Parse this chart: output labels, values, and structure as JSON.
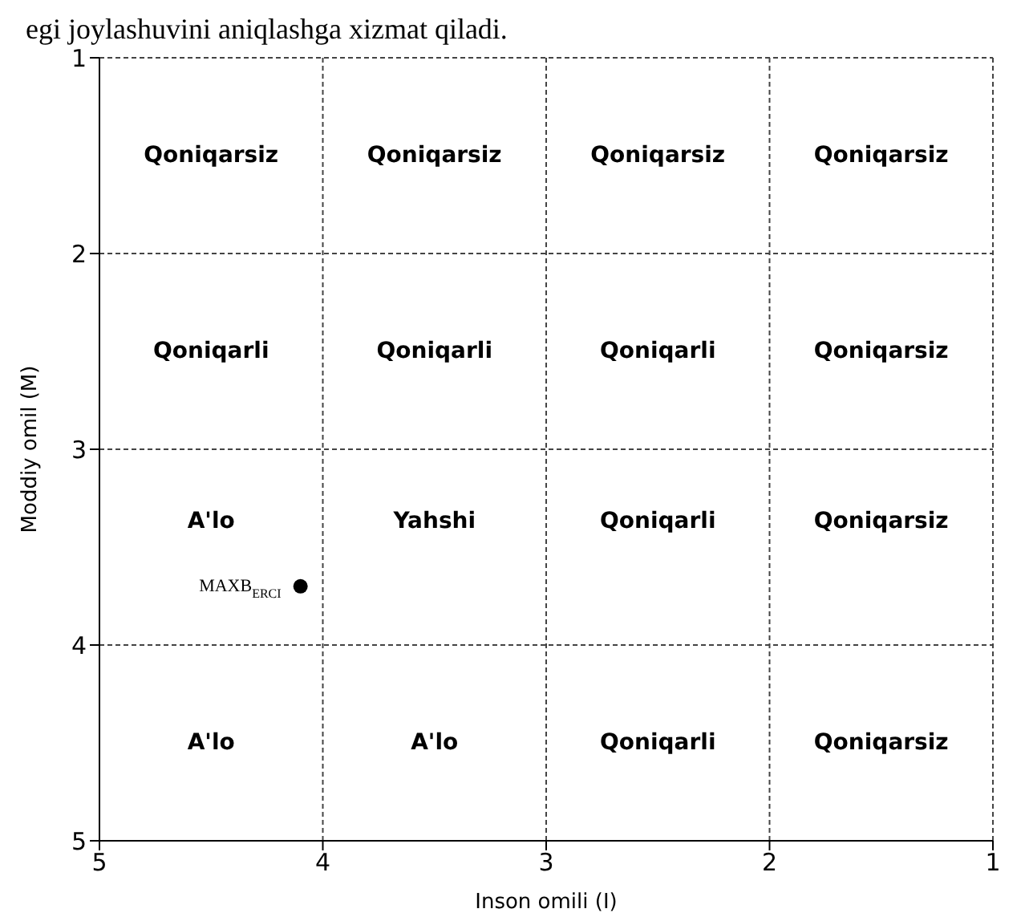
{
  "chart_data": {
    "type": "scatter",
    "xlabel": "Inson omili (I)",
    "ylabel": "Moddiy omil (M)",
    "x": [
      4.1
    ],
    "series": [
      {
        "color": "#000000",
        "values": [
          3.7
        ]
      }
    ],
    "xlim": [
      5,
      1
    ],
    "ylim": [
      5,
      1
    ],
    "xticks": [
      5,
      4,
      3,
      2,
      1
    ],
    "yticks": [
      5,
      4,
      3,
      2,
      1
    ],
    "grid": true,
    "legend": false,
    "marker": "circle",
    "annotations": [
      "egi joylashuvini aniqlashga xizmat qiladi.",
      "Qoniqarsiz",
      "Qoniqarsiz",
      "Qoniqarsiz",
      "Qoniqarsiz",
      "Qoniqarli",
      "Qoniqarli",
      "Qoniqarli",
      "Qoniqarsiz",
      "A'lo",
      "Yahshi",
      "Qoniqarli",
      "Qoniqarsiz",
      "A'lo",
      "A'lo",
      "Qoniqarli",
      "Qoniqarsiz",
      {
        "text": "MAXB$_{ERCI}$",
        "x": 4.1,
        "y": 3.7
      }
    ]
  }
}
